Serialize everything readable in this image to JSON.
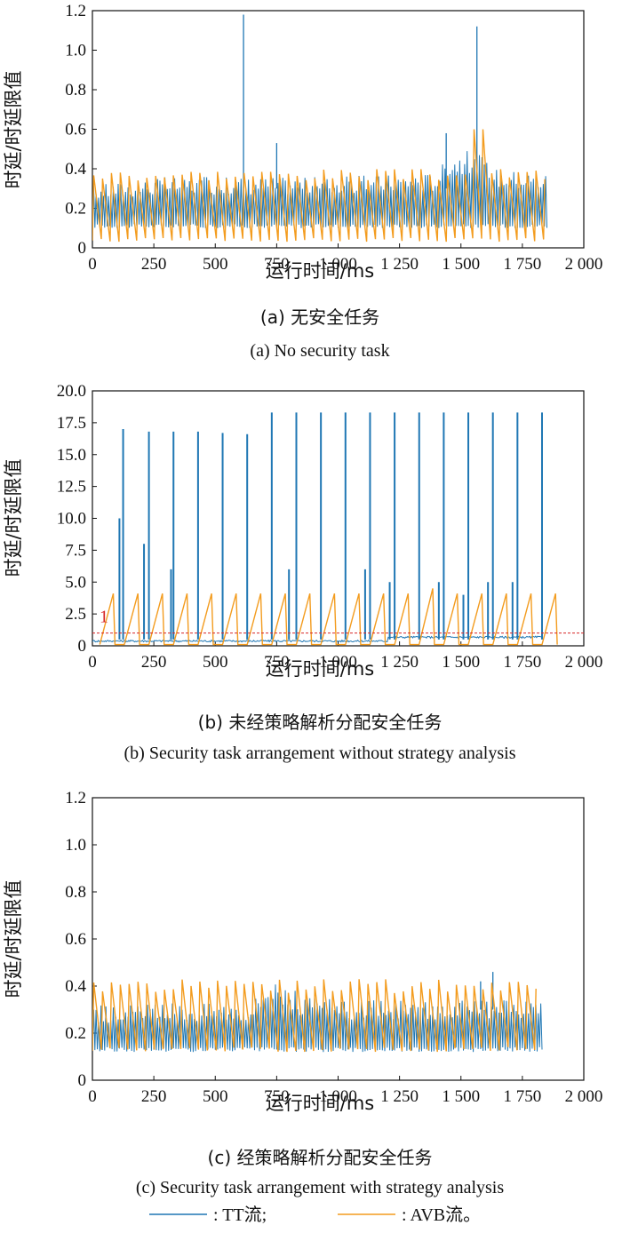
{
  "colors": {
    "tt": "#1f77b4",
    "avb": "#f39c1f",
    "threshold": "#d62728",
    "axis": "#111111"
  },
  "legend": {
    "tt_label": ": TT流;",
    "avb_label": ": AVB流。"
  },
  "chart_data": [
    {
      "type": "line",
      "title": "",
      "xlabel": "运行时间/ms",
      "ylabel": "时延/时延限值",
      "caption_cn": "(a) 无安全任务",
      "caption_en": "(a) No security task",
      "xlim": [
        0,
        2000
      ],
      "ylim": [
        0,
        1.2
      ],
      "x_ticks": [
        0,
        250,
        500,
        750,
        1000,
        1250,
        1500,
        1750,
        2000
      ],
      "x_tick_labels": [
        "0",
        "250",
        "500",
        "750",
        "1 000",
        "1 250",
        "1 500",
        "1 750",
        "2 000"
      ],
      "y_ticks": [
        0,
        0.2,
        0.4,
        0.6,
        0.8,
        1.0,
        1.2
      ],
      "y_tick_labels": [
        "0",
        "0.2",
        "0.4",
        "0.6",
        "0.8",
        "1.0",
        "1.2"
      ],
      "series": [
        {
          "name": "TT流",
          "color": "tt",
          "x_end": 1850,
          "period": 10,
          "low": 0.1,
          "high_envelope": [
            [
              0,
              0.32
            ],
            [
              300,
              0.36
            ],
            [
              1000,
              0.36
            ],
            [
              1300,
              0.38
            ],
            [
              1400,
              0.38
            ],
            [
              1450,
              0.48
            ],
            [
              1550,
              0.5
            ],
            [
              1650,
              0.4
            ],
            [
              1850,
              0.38
            ]
          ],
          "spikes": [
            [
              615,
              1.18
            ],
            [
              750,
              0.53
            ],
            [
              1565,
              1.12
            ],
            [
              1440,
              0.58
            ]
          ]
        },
        {
          "name": "AVB流",
          "color": "avb",
          "x_end": 1850,
          "period": 36,
          "low": 0.03,
          "high": 0.4,
          "high_override": [
            [
              1565,
              0.6
            ]
          ]
        }
      ],
      "annotations": []
    },
    {
      "type": "line",
      "title": "",
      "xlabel": "运行时间/ms",
      "ylabel": "时延/时延限值",
      "caption_cn": "(b) 未经策略解析分配安全任务",
      "caption_en": "(b) Security task arrangement without strategy analysis",
      "xlim": [
        0,
        2000
      ],
      "ylim": [
        0,
        20
      ],
      "x_ticks": [
        0,
        250,
        500,
        750,
        1000,
        1250,
        1500,
        1750,
        2000
      ],
      "x_tick_labels": [
        "0",
        "250",
        "500",
        "750",
        "1 000",
        "1 250",
        "1 500",
        "1 750",
        "2 000"
      ],
      "y_ticks": [
        0,
        2.5,
        5,
        7.5,
        10,
        12.5,
        15,
        17.5,
        20
      ],
      "y_tick_labels": [
        "0",
        "2.5",
        "5.0",
        "7.5",
        "10.0",
        "12.5",
        "15.0",
        "17.5",
        "20.0"
      ],
      "series": [
        {
          "name": "TT流",
          "color": "tt",
          "x_end": 1830,
          "baseline": 0.3,
          "baseline_late": 0.6,
          "spikes": [
            [
              110,
              10
            ],
            [
              125,
              17
            ],
            [
              230,
              16.8
            ],
            [
              330,
              16.8
            ],
            [
              430,
              16.8
            ],
            [
              530,
              16.7
            ],
            [
              630,
              16.6
            ],
            [
              730,
              18.3
            ],
            [
              830,
              18.3
            ],
            [
              930,
              18.3
            ],
            [
              1030,
              18.3
            ],
            [
              1130,
              18.3
            ],
            [
              1230,
              18.3
            ],
            [
              1330,
              18.3
            ],
            [
              1430,
              18.3
            ],
            [
              1530,
              18.3
            ],
            [
              1630,
              18.3
            ],
            [
              1730,
              18.3
            ],
            [
              1830,
              18.3
            ],
            [
              210,
              8
            ],
            [
              320,
              6
            ],
            [
              800,
              6
            ],
            [
              1110,
              6
            ],
            [
              1210,
              5
            ],
            [
              1410,
              5
            ],
            [
              1510,
              4
            ],
            [
              1610,
              5
            ],
            [
              1710,
              5
            ]
          ]
        },
        {
          "name": "AVB流",
          "color": "avb",
          "x_end": 1830,
          "period": 100,
          "start": 30,
          "low": 0.1,
          "high": 4.1,
          "high_max": [
            [
              1330,
              4.5
            ]
          ]
        }
      ],
      "threshold": 1,
      "annotations": [
        {
          "text": "1",
          "color": "threshold"
        }
      ]
    },
    {
      "type": "line",
      "title": "",
      "xlabel": "运行时间/ms",
      "ylabel": "时延/时延限值",
      "caption_cn": "(c) 经策略解析分配安全任务",
      "caption_en": "(c) Security task arrangement with strategy analysis",
      "xlim": [
        0,
        2000
      ],
      "ylim": [
        0,
        1.2
      ],
      "x_ticks": [
        0,
        250,
        500,
        750,
        1000,
        1250,
        1500,
        1750,
        2000
      ],
      "x_tick_labels": [
        "0",
        "250",
        "500",
        "750",
        "1 000",
        "1 250",
        "1 500",
        "1 750",
        "2 000"
      ],
      "y_ticks": [
        0,
        0.2,
        0.4,
        0.6,
        0.8,
        1.0,
        1.2
      ],
      "y_tick_labels": [
        "0",
        "0.2",
        "0.4",
        "0.6",
        "0.8",
        "1.0",
        "1.2"
      ],
      "series": [
        {
          "name": "TT流",
          "color": "tt",
          "x_end": 1830,
          "period": 10,
          "low": 0.12,
          "high_envelope": [
            [
              0,
              0.32
            ],
            [
              650,
              0.34
            ],
            [
              720,
              0.44
            ],
            [
              780,
              0.42
            ],
            [
              850,
              0.36
            ],
            [
              1000,
              0.34
            ],
            [
              1830,
              0.34
            ]
          ],
          "spikes": [
            [
              1630,
              0.46
            ],
            [
              1580,
              0.42
            ]
          ]
        },
        {
          "name": "AVB流",
          "color": "avb",
          "x_end": 1830,
          "period": 36,
          "low": 0.12,
          "high": 0.43
        }
      ],
      "annotations": []
    }
  ]
}
